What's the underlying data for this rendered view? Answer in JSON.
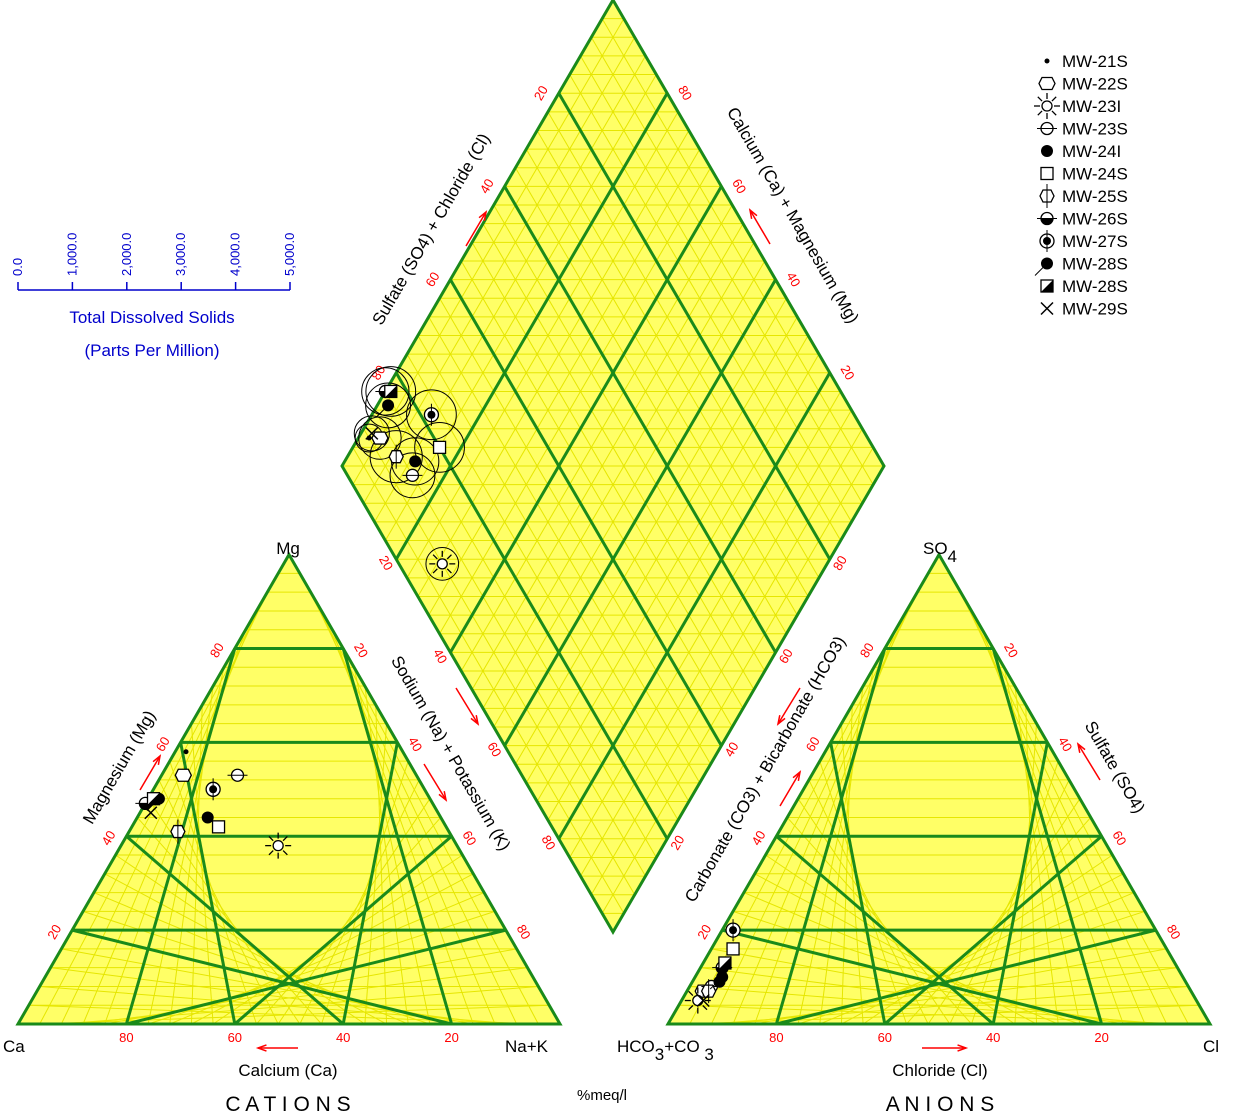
{
  "chart_data": {
    "type": "scatter",
    "subtype": "piper-trilinear",
    "title": "",
    "units_label": "%meq/l",
    "colors": {
      "fill": "#ffff66",
      "fine_grid": "#e6e600",
      "major_grid": "#1a8a1a",
      "tick_text": "#ff0000",
      "arrow": "#ff0000",
      "tds_scale": "#0000cc",
      "marker": "#000000"
    },
    "cation_triangle": {
      "corners": {
        "left": "Ca",
        "top": "Mg",
        "right": "Na+K"
      },
      "axis_labels": {
        "bottom": "Calcium (Ca)",
        "left": "Magnesium (Mg)",
        "right": "Sodium (Na) + Potassium (K)"
      },
      "title": "C A T I O N S",
      "ticks": [
        "20",
        "40",
        "60",
        "80"
      ]
    },
    "anion_triangle": {
      "corners": {
        "left": "HCO3+CO3",
        "top": "SO4",
        "right": "Cl"
      },
      "axis_labels": {
        "bottom": "Chloride (Cl)",
        "left": "Carbonate (CO3) + Bicarbonate (HCO3)",
        "right": "Sulfate (SO4)"
      },
      "title": "A N I O N S",
      "ticks": [
        "20",
        "40",
        "60",
        "80"
      ]
    },
    "diamond": {
      "axis_labels": {
        "upper_left": "Sulfate (SO4) + Chloride (Cl)",
        "upper_right": "Calcium (Ca) + Magnesium (Mg)"
      },
      "ticks": [
        "20",
        "40",
        "60",
        "80"
      ]
    },
    "tds_scale": {
      "label_line1": "Total Dissolved Solids",
      "label_line2": "(Parts Per Million)",
      "ticks": [
        "0.0",
        "1,000.0",
        "2,000.0",
        "3,000.0",
        "4,000.0",
        "5,000.0"
      ],
      "max": 5000
    },
    "legend_position": "top-right",
    "series": [
      {
        "name": "MW-21S",
        "marker": "dot",
        "ca": 40,
        "mg": 58,
        "na_k": 2,
        "hco3": 92,
        "so4": 5,
        "cl": 3,
        "tds": 500
      },
      {
        "name": "MW-22S",
        "marker": "hexagon",
        "ca": 43,
        "mg": 53,
        "na_k": 4,
        "hco3": 90,
        "so4": 7,
        "cl": 3,
        "tds": 1100
      },
      {
        "name": "MW-23I",
        "marker": "sun",
        "ca": 33,
        "mg": 38,
        "na_k": 29,
        "hco3": 92,
        "so4": 5,
        "cl": 3,
        "tds": 700
      },
      {
        "name": "MW-23S",
        "marker": "circle-cross",
        "ca": 33,
        "mg": 53,
        "na_k": 14,
        "hco3": 88,
        "so4": 8,
        "cl": 4,
        "tds": 1200
      },
      {
        "name": "MW-24I",
        "marker": "filled-circle",
        "ca": 43,
        "mg": 44,
        "na_k": 13,
        "hco3": 86,
        "so4": 9,
        "cl": 5,
        "tds": 1300
      },
      {
        "name": "MW-24S",
        "marker": "square",
        "ca": 42,
        "mg": 42,
        "na_k": 16,
        "hco3": 80,
        "so4": 16,
        "cl": 4,
        "tds": 1400
      },
      {
        "name": "MW-25S",
        "marker": "hex-stem",
        "ca": 50,
        "mg": 41,
        "na_k": 9,
        "hco3": 89,
        "so4": 7,
        "cl": 4,
        "tds": 1500
      },
      {
        "name": "MW-26S",
        "marker": "half-circle",
        "ca": 53,
        "mg": 47,
        "na_k": 0,
        "hco3": 84,
        "so4": 12,
        "cl": 4,
        "tds": 1300
      },
      {
        "name": "MW-27S",
        "marker": "circle-ring",
        "ca": 39,
        "mg": 50,
        "na_k": 11,
        "hco3": 78,
        "so4": 20,
        "cl": 2,
        "tds": 1400
      },
      {
        "name": "MW-28S",
        "marker": "circle-arrow",
        "ca": 50,
        "mg": 48,
        "na_k": 2,
        "hco3": 85,
        "so4": 10,
        "cl": 5,
        "tds": 1200
      },
      {
        "name": "MW-28S",
        "marker": "half-square",
        "ca": 51,
        "mg": 48,
        "na_k": 1,
        "hco3": 83,
        "so4": 13,
        "cl": 4,
        "tds": 1400
      },
      {
        "name": "MW-29S",
        "marker": "x-star",
        "ca": 53,
        "mg": 45,
        "na_k": 2,
        "hco3": 91,
        "so4": 5,
        "cl": 4,
        "tds": 800
      }
    ]
  }
}
